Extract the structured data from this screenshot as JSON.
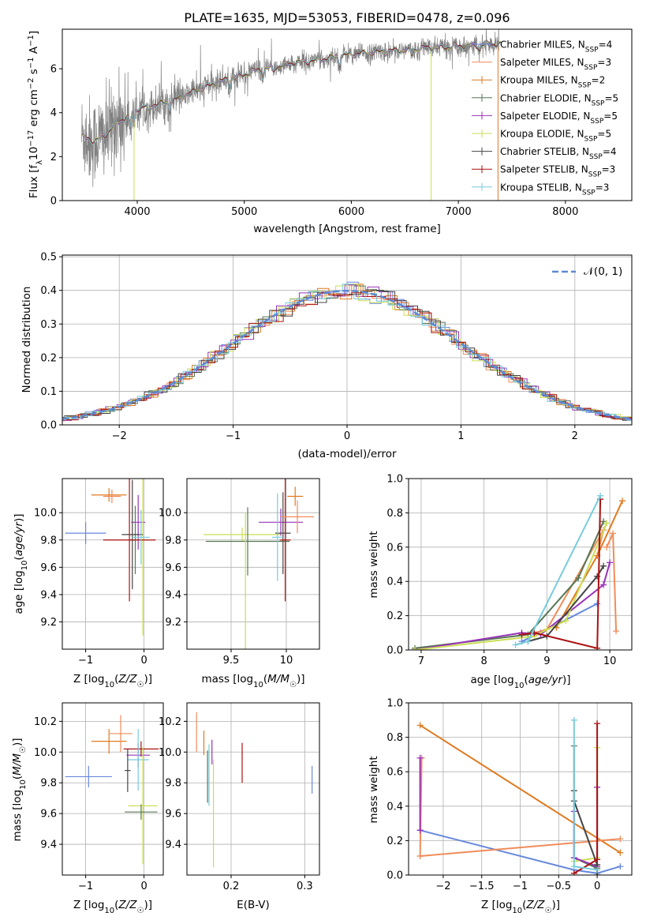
{
  "title": "PLATE=1635, MJD=53053, FIBERID=0478, z=0.096",
  "colors": {
    "Chabrier MILES": "#6688dd",
    "Salpeter MILES": "#f08c5a",
    "Kroupa MILES": "#e07a20",
    "Chabrier ELODIE": "#557755",
    "Salpeter ELODIE": "#9933bb",
    "Kroupa ELODIE": "#ccdd55",
    "Chabrier STELIB": "#444444",
    "Salpeter STELIB": "#aa1111",
    "Kroupa STELIB": "#77ccdd",
    "data": "#808080",
    "normal": "#5b8ad6"
  },
  "legend": [
    {
      "name": "Chabrier MILES",
      "n": "4"
    },
    {
      "name": "Salpeter MILES",
      "n": "3"
    },
    {
      "name": "Kroupa MILES",
      "n": "2"
    },
    {
      "name": "Chabrier ELODIE",
      "n": "5"
    },
    {
      "name": "Salpeter ELODIE",
      "n": "5"
    },
    {
      "name": "Kroupa ELODIE",
      "n": "5"
    },
    {
      "name": "Chabrier STELIB",
      "n": "4"
    },
    {
      "name": "Salpeter STELIB",
      "n": "3"
    },
    {
      "name": "Kroupa STELIB",
      "n": "3"
    }
  ],
  "chart_data": [
    {
      "id": "spectrum",
      "type": "line",
      "xlabel": "wavelength [Angstrom, rest frame]",
      "ylabel": "Flux [f_λ 10^-17 erg cm^-2 s^-1 A^-1]",
      "xlim": [
        3300,
        8620
      ],
      "ylim": [
        0,
        7.8
      ],
      "xticks": [
        4000,
        5000,
        6000,
        7000,
        8000
      ],
      "yticks": [
        0,
        2,
        4,
        6
      ],
      "model_continuum": {
        "x": [
          3480,
          3600,
          3700,
          3800,
          3900,
          4000,
          4100,
          4300,
          4500,
          4700,
          4900,
          5100,
          5300,
          5500,
          5700,
          5900,
          6100,
          6300,
          6500,
          6700,
          6900,
          7100,
          7300,
          7400
        ],
        "y": [
          2.9,
          2.7,
          3.0,
          3.5,
          3.8,
          4.2,
          4.3,
          4.5,
          4.9,
          5.3,
          5.6,
          5.9,
          6.1,
          6.3,
          6.4,
          6.6,
          6.7,
          6.8,
          6.85,
          6.95,
          7.0,
          7.05,
          7.1,
          7.1
        ]
      },
      "grid": false
    },
    {
      "id": "residuals",
      "type": "line",
      "xlabel": "(data-model)/error",
      "ylabel": "Normed distribution",
      "xlim": [
        -2.5,
        2.5
      ],
      "ylim": [
        0,
        0.505
      ],
      "xticks": [
        -2,
        -1,
        0,
        1,
        2
      ],
      "yticks": [
        0.0,
        0.1,
        0.2,
        0.3,
        0.4,
        0.5
      ],
      "normal_label": "𝒩(0, 1)",
      "grid": true
    },
    {
      "id": "age_vs_Z",
      "type": "scatter",
      "xlabel": "Z [log10(Z/Z☉)]",
      "ylabel": "age [log10(age/yr)]",
      "xlim": [
        -1.4,
        0.33
      ],
      "ylim": [
        9.0,
        10.25
      ],
      "xticks": [
        -1,
        0
      ],
      "yticks": [
        9.2,
        9.4,
        9.6,
        9.8,
        10.0
      ],
      "points": [
        {
          "series": "Chabrier MILES",
          "x": -1.0,
          "y": 9.85,
          "xe": 0.35,
          "ye": 0.08
        },
        {
          "series": "Kroupa MILES",
          "x": -0.6,
          "y": 10.13,
          "xe": 0.3,
          "ye": 0.05
        },
        {
          "series": "Salpeter MILES",
          "x": -0.55,
          "y": 10.12,
          "xe": 0.15,
          "ye": 0.05
        },
        {
          "series": "Chabrier ELODIE",
          "x": -0.15,
          "y": 9.8,
          "xe": 0.1,
          "ye": 0.25
        },
        {
          "series": "Salpeter ELODIE",
          "x": -0.1,
          "y": 9.93,
          "xe": 0.12,
          "ye": 0.2
        },
        {
          "series": "Kroupa ELODIE",
          "x": -0.02,
          "y": 9.8,
          "xe": 0.12,
          "ye": 0.7
        },
        {
          "series": "Chabrier STELIB",
          "x": -0.2,
          "y": 9.84,
          "xe": 0.18,
          "ye": 0.4
        },
        {
          "series": "Salpeter STELIB",
          "x": -0.25,
          "y": 9.8,
          "xe": 0.45,
          "ye": 0.45
        },
        {
          "series": "Kroupa STELIB",
          "x": -0.05,
          "y": 9.82,
          "xe": 0.15,
          "ye": 0.2
        }
      ],
      "grid": true
    },
    {
      "id": "age_vs_mass",
      "type": "scatter",
      "xlabel": "mass [log10(M/M☉)]",
      "ylabel": "",
      "xlim": [
        9.1,
        10.3
      ],
      "ylim": [
        9.0,
        10.25
      ],
      "xticks": [
        9.5,
        10.0
      ],
      "yticks": [
        9.2,
        9.4,
        9.6,
        9.8,
        10.0
      ],
      "points": [
        {
          "series": "Kroupa ELODIE",
          "x": 9.6,
          "y": 9.84,
          "xe": 0.35,
          "ye": 0.05
        },
        {
          "series": "Chabrier ELODIE",
          "x": 9.65,
          "y": 9.79,
          "xe": 0.38,
          "ye": 0.25
        },
        {
          "series": "Kroupa ELODIE",
          "x": 9.63,
          "y": 9.5,
          "xe": 0.0,
          "ye": 0.5
        },
        {
          "series": "Salpeter ELODIE",
          "x": 9.95,
          "y": 9.93,
          "xe": 0.2,
          "ye": 0.1
        },
        {
          "series": "Chabrier STELIB",
          "x": 9.97,
          "y": 9.85,
          "xe": 0.07,
          "ye": 0.3
        },
        {
          "series": "Salpeter STELIB",
          "x": 9.99,
          "y": 9.8,
          "xe": 0.05,
          "ye": 0.45
        },
        {
          "series": "Kroupa STELIB",
          "x": 9.92,
          "y": 9.82,
          "xe": 0.05,
          "ye": 0.32
        },
        {
          "series": "Kroupa MILES",
          "x": 10.08,
          "y": 10.12,
          "xe": 0.07,
          "ye": 0.07
        },
        {
          "series": "Salpeter MILES",
          "x": 10.1,
          "y": 9.97,
          "xe": 0.15,
          "ye": 0.12
        }
      ],
      "grid": true
    },
    {
      "id": "weight_vs_age",
      "type": "line",
      "xlabel": "age [log10(age/yr)]",
      "ylabel": "mass weight",
      "xlim": [
        6.8,
        10.35
      ],
      "ylim": [
        0,
        1.0
      ],
      "xticks": [
        7,
        8,
        9,
        10
      ],
      "yticks": [
        0.0,
        0.2,
        0.4,
        0.6,
        0.8,
        1.0
      ],
      "series": [
        {
          "name": "Chabrier MILES",
          "x": [
            8.6,
            8.9,
            9.8
          ],
          "y": [
            0.05,
            0.1,
            0.27
          ]
        },
        {
          "name": "Salpeter MILES",
          "x": [
            8.8,
            9.0,
            9.9,
            9.8
          ],
          "y": [
            0.1,
            0.12,
            0.7,
            0.55
          ]
        },
        {
          "name": "Kroupa MILES",
          "x": [
            9.15,
            9.8,
            10.2
          ],
          "y": [
            0.13,
            0.55,
            0.87
          ]
        },
        {
          "name": "Chabrier ELODIE",
          "x": [
            6.9,
            8.7,
            9.5,
            9.9
          ],
          "y": [
            0.01,
            0.09,
            0.42,
            0.75
          ]
        },
        {
          "name": "Salpeter ELODIE",
          "x": [
            6.9,
            8.6,
            8.9,
            9.9,
            10.0
          ],
          "y": [
            0.0,
            0.1,
            0.09,
            0.38,
            0.51
          ]
        },
        {
          "name": "Kroupa ELODIE",
          "x": [
            6.9,
            8.8,
            9.0,
            9.3,
            9.95
          ],
          "y": [
            0.0,
            0.08,
            0.12,
            0.17,
            0.74
          ]
        },
        {
          "name": "Chabrier STELIB",
          "x": [
            8.7,
            9.0,
            9.8,
            9.9
          ],
          "y": [
            0.05,
            0.08,
            0.43,
            0.49
          ]
        },
        {
          "name": "Salpeter STELIB",
          "x": [
            8.6,
            8.8,
            9.8,
            9.85
          ],
          "y": [
            0.09,
            0.1,
            0.01,
            0.88
          ]
        },
        {
          "name": "Kroupa STELIB",
          "x": [
            8.5,
            8.7,
            9.85
          ],
          "y": [
            0.03,
            0.05,
            0.9
          ]
        },
        {
          "name": "Salpeter MILES",
          "x": [
            9.95,
            10.05,
            10.1
          ],
          "y": [
            0.6,
            0.68,
            0.11
          ]
        }
      ],
      "grid": true
    },
    {
      "id": "mass_vs_Z",
      "type": "scatter",
      "xlabel": "Z [log10(Z/Z☉)]",
      "ylabel": "mass [log10(M/M☉)]",
      "xlim": [
        -1.4,
        0.33
      ],
      "ylim": [
        9.2,
        10.32
      ],
      "xticks": [
        -1,
        0
      ],
      "yticks": [
        9.4,
        9.6,
        9.8,
        10.0,
        10.2
      ],
      "points": [
        {
          "series": "Chabrier MILES",
          "x": -0.95,
          "y": 9.84,
          "xe": 0.4,
          "ye": 0.07
        },
        {
          "series": "Kroupa MILES",
          "x": -0.6,
          "y": 10.07,
          "xe": 0.3,
          "ye": 0.08
        },
        {
          "series": "Salpeter MILES",
          "x": -0.4,
          "y": 10.12,
          "xe": 0.2,
          "ye": 0.12
        },
        {
          "series": "Salpeter STELIB",
          "x": -0.05,
          "y": 10.02,
          "xe": 0.3,
          "ye": 0.05
        },
        {
          "series": "Salpeter ELODIE",
          "x": -0.1,
          "y": 9.98,
          "xe": 0.2,
          "ye": 0.08
        },
        {
          "series": "Kroupa STELIB",
          "x": -0.1,
          "y": 9.95,
          "xe": 0.18,
          "ye": 0.2
        },
        {
          "series": "Kroupa ELODIE",
          "x": -0.02,
          "y": 9.65,
          "xe": 0.25,
          "ye": 0.38
        },
        {
          "series": "Chabrier ELODIE",
          "x": -0.05,
          "y": 9.61,
          "xe": 0.28,
          "ye": 0.05
        },
        {
          "series": "Chabrier STELIB",
          "x": -0.28,
          "y": 9.88,
          "xe": 0.05,
          "ye": 0.14
        }
      ],
      "grid": true
    },
    {
      "id": "mass_vs_ebv",
      "type": "scatter",
      "xlabel": "E(B-V)",
      "ylabel": "",
      "xlim": [
        0.14,
        0.32
      ],
      "ylim": [
        9.2,
        10.32
      ],
      "xticks": [
        0.2,
        0.3
      ],
      "yticks": [
        9.4,
        9.6,
        9.8,
        10.0,
        10.2
      ],
      "points": [
        {
          "series": "Salpeter MILES",
          "x": 0.153,
          "y": 10.13,
          "ye": 0.13
        },
        {
          "series": "Kroupa MILES",
          "x": 0.163,
          "y": 10.06,
          "ye": 0.08
        },
        {
          "series": "Chabrier ELODIE",
          "x": 0.168,
          "y": 9.84,
          "ye": 0.17
        },
        {
          "series": "Salpeter ELODIE",
          "x": 0.174,
          "y": 10.0,
          "ye": 0.08
        },
        {
          "series": "Kroupa ELODIE",
          "x": 0.176,
          "y": 9.6,
          "ye": 0.35
        },
        {
          "series": "Kroupa STELIB",
          "x": 0.17,
          "y": 9.85,
          "ye": 0.2
        },
        {
          "series": "Salpeter STELIB",
          "x": 0.215,
          "y": 9.93,
          "ye": 0.13
        },
        {
          "series": "Chabrier MILES",
          "x": 0.31,
          "y": 9.82,
          "ye": 0.09
        }
      ],
      "grid": true
    },
    {
      "id": "weight_vs_Z",
      "type": "line",
      "xlabel": "Z [log10(Z/Z☉)]",
      "ylabel": "mass weight",
      "xlim": [
        -2.45,
        0.45
      ],
      "ylim": [
        0,
        1.0
      ],
      "xticks": [
        -2.0,
        -1.5,
        -1.0,
        -0.5,
        0.0
      ],
      "yticks": [
        0.0,
        0.2,
        0.4,
        0.6,
        0.8,
        1.0
      ],
      "series": [
        {
          "name": "Chabrier MILES",
          "x": [
            -2.3,
            -0.3,
            0.0,
            0.3
          ],
          "y": [
            0.26,
            0.03,
            0.01,
            0.05
          ]
        },
        {
          "name": "Kroupa MILES",
          "x": [
            -2.3,
            0.3
          ],
          "y": [
            0.87,
            0.13
          ]
        },
        {
          "name": "Salpeter MILES",
          "x": [
            -2.3,
            0.3
          ],
          "y": [
            0.11,
            0.21
          ]
        },
        {
          "name": "Salpeter MILES",
          "x": [
            -2.28,
            -2.3
          ],
          "y": [
            0.68,
            0.11
          ]
        },
        {
          "name": "Salpeter ELODIE",
          "x": [
            -2.3,
            -2.3
          ],
          "y": [
            0.68,
            0.26
          ]
        },
        {
          "name": "Chabrier ELODIE",
          "x": [
            -0.3,
            -0.3,
            0.0
          ],
          "y": [
            0.75,
            0.1,
            0.04
          ]
        },
        {
          "name": "Kroupa ELODIE",
          "x": [
            0.0,
            0.0,
            -0.3
          ],
          "y": [
            0.74,
            0.1,
            0.08
          ]
        },
        {
          "name": "Salpeter ELODIE",
          "x": [
            -0.3,
            -0.3,
            0.0,
            0.0
          ],
          "y": [
            0.37,
            0.1,
            0.05,
            0.51
          ]
        },
        {
          "name": "Chabrier STELIB",
          "x": [
            -0.3,
            -0.3,
            0.0,
            0.0
          ],
          "y": [
            0.49,
            0.43,
            0.06,
            0.0
          ]
        },
        {
          "name": "Salpeter STELIB",
          "x": [
            -0.3,
            0.0,
            0.0
          ],
          "y": [
            0.01,
            0.09,
            0.88
          ]
        },
        {
          "name": "Kroupa STELIB",
          "x": [
            -0.3,
            -0.3,
            0.0
          ],
          "y": [
            0.9,
            0.05,
            0.03
          ]
        }
      ],
      "grid": true
    }
  ]
}
